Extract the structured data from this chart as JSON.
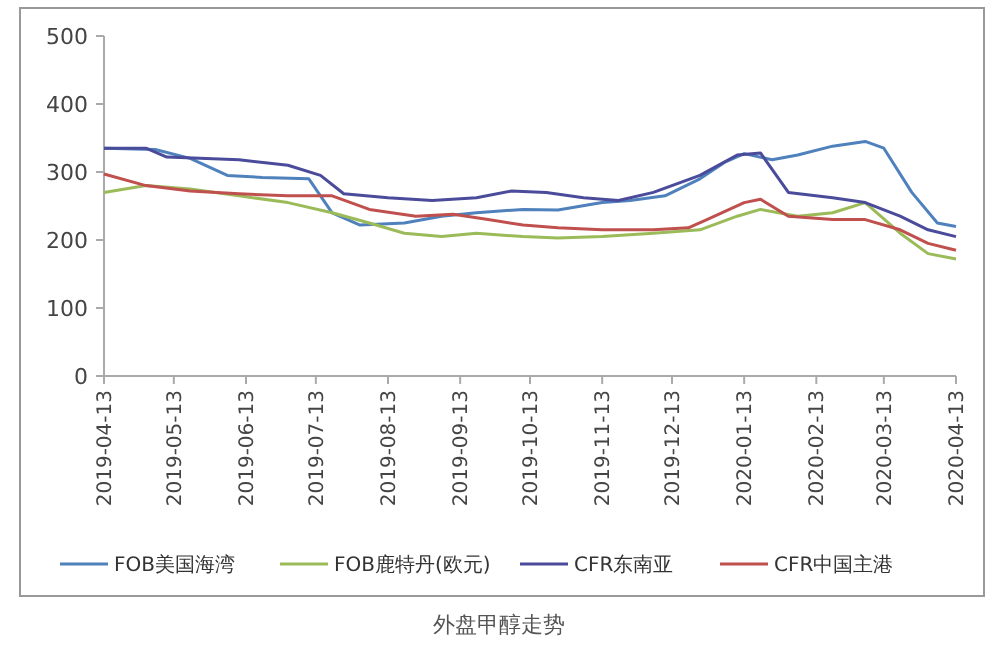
{
  "chart_data": {
    "type": "line",
    "title": "外盘甲醇走势",
    "xlim": [
      "2019-04-13",
      "2020-04-13"
    ],
    "xticks": [
      "2019-04-13",
      "2019-05-13",
      "2019-06-13",
      "2019-07-13",
      "2019-08-13",
      "2019-09-13",
      "2019-10-13",
      "2019-11-13",
      "2019-12-13",
      "2020-01-13",
      "2020-02-13",
      "2020-03-13",
      "2020-04-13"
    ],
    "ylim": [
      0,
      500
    ],
    "yticks": [
      0,
      100,
      200,
      300,
      400,
      500
    ],
    "legend": "bottom",
    "series": [
      {
        "name": "FOB美国海湾",
        "color": "#4f81bd",
        "x": [
          "2019-04-13",
          "2019-05-05",
          "2019-05-20",
          "2019-06-05",
          "2019-06-20",
          "2019-07-10",
          "2019-07-20",
          "2019-08-01",
          "2019-08-20",
          "2019-09-05",
          "2019-09-20",
          "2019-10-10",
          "2019-10-25",
          "2019-11-13",
          "2019-11-25",
          "2019-12-10",
          "2019-12-25",
          "2020-01-05",
          "2020-01-13",
          "2020-01-25",
          "2020-02-05",
          "2020-02-20",
          "2020-03-05",
          "2020-03-13",
          "2020-03-25",
          "2020-04-05",
          "2020-04-13"
        ],
        "values": [
          335,
          333,
          320,
          295,
          292,
          290,
          240,
          222,
          225,
          235,
          240,
          245,
          244,
          255,
          258,
          265,
          290,
          315,
          327,
          318,
          325,
          338,
          345,
          335,
          270,
          225,
          220
        ]
      },
      {
        "name": "FOB鹿特丹(欧元)",
        "color": "#9bbb59",
        "x": [
          "2019-04-13",
          "2019-05-01",
          "2019-05-20",
          "2019-06-10",
          "2019-07-01",
          "2019-07-20",
          "2019-08-05",
          "2019-08-20",
          "2019-09-05",
          "2019-09-20",
          "2019-10-10",
          "2019-10-25",
          "2019-11-13",
          "2019-12-05",
          "2019-12-25",
          "2020-01-10",
          "2020-01-20",
          "2020-02-05",
          "2020-02-20",
          "2020-03-05",
          "2020-03-20",
          "2020-04-01",
          "2020-04-13"
        ],
        "values": [
          270,
          280,
          275,
          265,
          255,
          240,
          225,
          210,
          205,
          210,
          205,
          203,
          205,
          210,
          215,
          235,
          245,
          235,
          240,
          255,
          210,
          180,
          172
        ]
      },
      {
        "name": "CFR东南亚",
        "color": "#4b4b9b",
        "x": [
          "2019-04-13",
          "2019-05-01",
          "2019-05-10",
          "2019-06-10",
          "2019-07-01",
          "2019-07-15",
          "2019-07-25",
          "2019-08-13",
          "2019-09-01",
          "2019-09-20",
          "2019-10-05",
          "2019-10-20",
          "2019-11-05",
          "2019-11-20",
          "2019-12-05",
          "2019-12-25",
          "2020-01-10",
          "2020-01-20",
          "2020-02-01",
          "2020-02-20",
          "2020-03-05",
          "2020-03-20",
          "2020-04-01",
          "2020-04-13"
        ],
        "values": [
          335,
          335,
          322,
          318,
          310,
          295,
          268,
          262,
          258,
          262,
          272,
          270,
          262,
          258,
          270,
          295,
          325,
          328,
          270,
          262,
          255,
          235,
          215,
          205
        ]
      },
      {
        "name": "CFR中国主港",
        "color": "#c0504d",
        "x": [
          "2019-04-13",
          "2019-05-01",
          "2019-05-20",
          "2019-06-10",
          "2019-07-01",
          "2019-07-20",
          "2019-08-05",
          "2019-08-25",
          "2019-09-10",
          "2019-09-25",
          "2019-10-10",
          "2019-10-25",
          "2019-11-13",
          "2019-12-05",
          "2019-12-20",
          "2019-12-28",
          "2020-01-13",
          "2020-01-20",
          "2020-02-01",
          "2020-02-20",
          "2020-03-05",
          "2020-03-20",
          "2020-04-01",
          "2020-04-13"
        ],
        "values": [
          297,
          280,
          272,
          268,
          265,
          265,
          245,
          235,
          238,
          230,
          222,
          218,
          215,
          215,
          218,
          230,
          255,
          260,
          235,
          230,
          230,
          215,
          195,
          185
        ]
      }
    ]
  }
}
